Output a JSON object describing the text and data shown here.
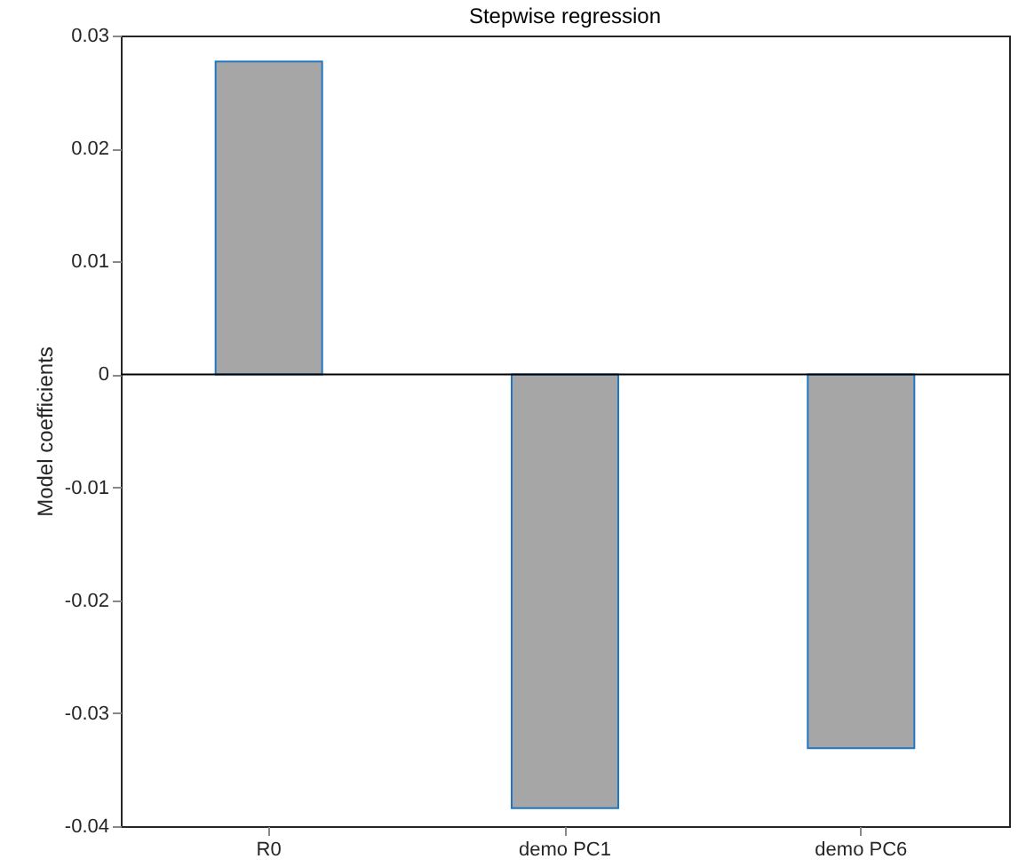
{
  "chart_data": {
    "type": "bar",
    "title": "Stepwise regression",
    "ylabel": "Model coefficients",
    "categories": [
      "R0",
      "demo PC1",
      "demo PC6"
    ],
    "values": [
      0.0277,
      -0.0384,
      -0.0331
    ],
    "color": "#a6a6a6",
    "ylim": [
      -0.04,
      0.03
    ],
    "yticks": [
      -0.04,
      -0.03,
      -0.02,
      -0.01,
      0,
      0.01,
      0.02,
      0.03
    ],
    "ref_lines": [
      {
        "axis": "y",
        "value": 0,
        "color": "#000000"
      }
    ],
    "grid": false
  }
}
